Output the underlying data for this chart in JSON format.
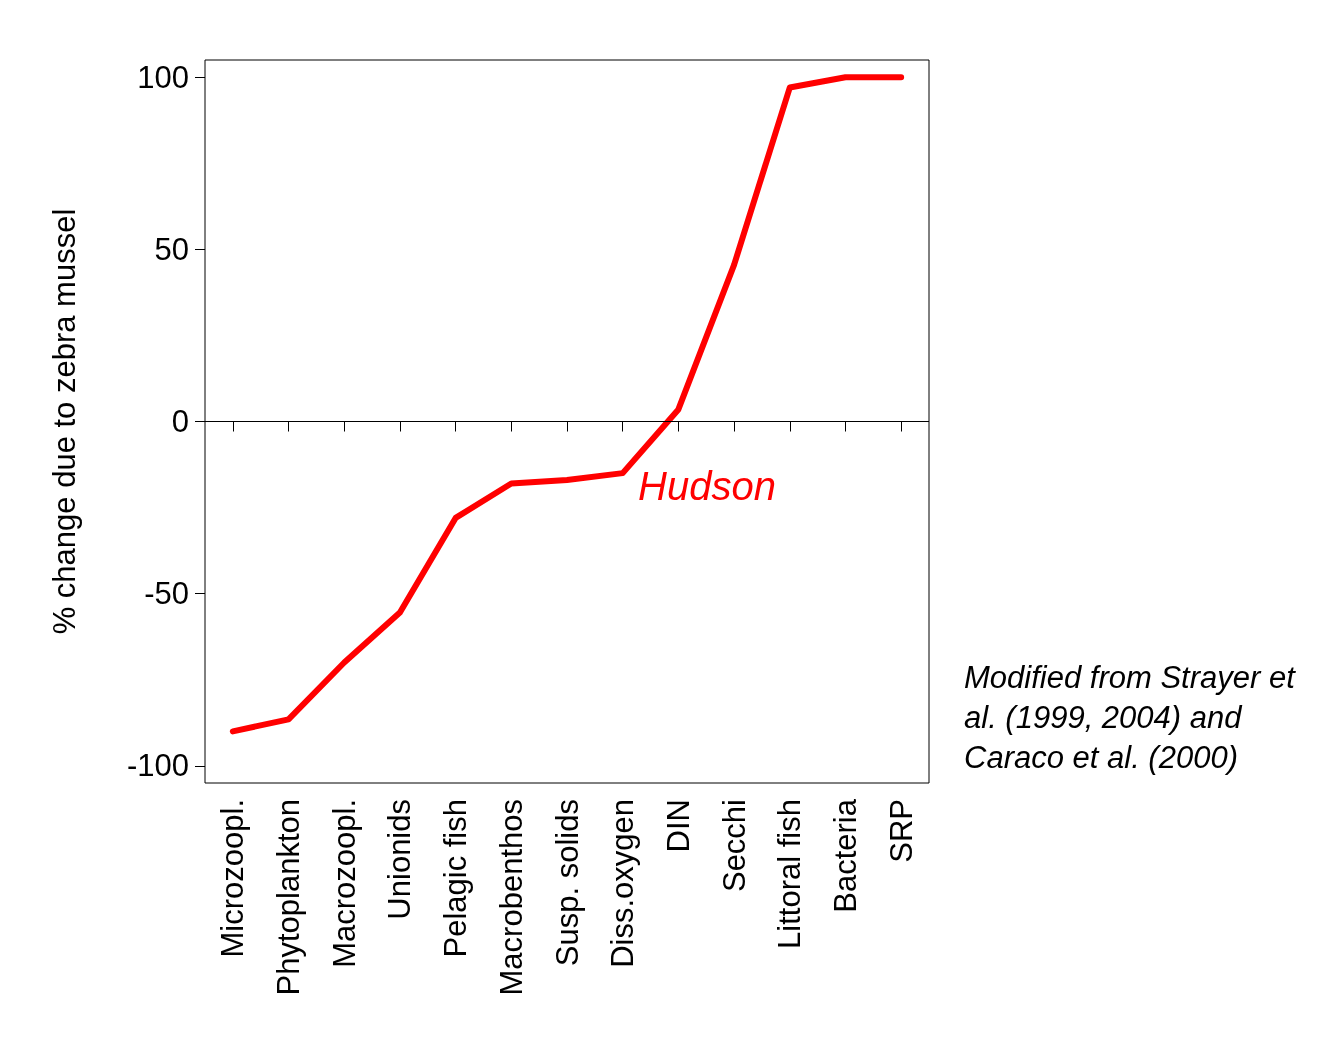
{
  "chart_data": {
    "type": "line",
    "ylabel": "% change due to zebra mussel",
    "categories": [
      "Microzoopl.",
      "Phytoplankton",
      "Macrozoopl.",
      "Unionids",
      "Pelagic fish",
      "Macrobenthos",
      "Susp. solids",
      "Diss.oxygen",
      "DIN",
      "Secchi",
      "Littoral fish",
      "Bacteria",
      "SRP"
    ],
    "series": [
      {
        "name": "Hudson",
        "color": "#ff0000",
        "values": [
          -90,
          -86.5,
          -70,
          -55.5,
          -28,
          -18,
          -17,
          -15,
          3.5,
          45.5,
          97,
          100,
          100
        ]
      }
    ],
    "ylim": [
      -105,
      105
    ],
    "yticks": [
      -100,
      -50,
      0,
      50,
      100
    ],
    "ref_lines": [
      {
        "axis": "y",
        "value": 0,
        "color": "#000000"
      }
    ],
    "annotations": [
      "Modified from Strayer et al. (1999, 2004) and Caraco et al. (2000)"
    ],
    "grid": false,
    "legend": false,
    "marker": "none",
    "line_style": "solid"
  }
}
